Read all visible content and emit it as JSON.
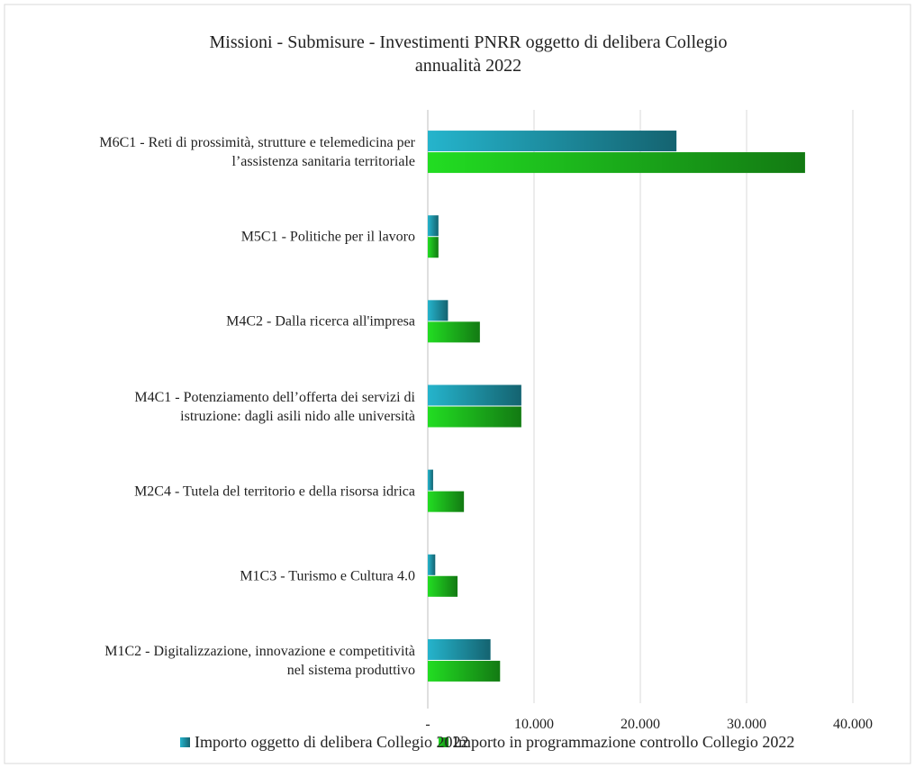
{
  "chart_data": {
    "type": "bar",
    "orientation": "horizontal",
    "title": "Missioni - Submisure - Investimenti PNRR oggetto di delibera Collegio\nannualità 2022",
    "categories": [
      "M6C1 - Reti di prossimità, strutture e telemedicina per\nl’assistenza sanitaria territoriale",
      "M5C1 - Politiche per il lavoro",
      "M4C2 - Dalla ricerca all'impresa",
      "M4C1 - Potenziamento dell’offerta dei servizi di\nistruzione: dagli asili nido alle università",
      "M2C4  - Tutela del territorio e della risorsa idrica",
      "M1C3 - Turismo e Cultura 4.0",
      "M1C2 - Digitalizzazione, innovazione e competitività\nnel sistema produttivo"
    ],
    "series": [
      {
        "name": "Importo oggetto di delibera Collegio 2022",
        "color": "#25b4cc",
        "values": [
          23400,
          1000,
          1900,
          8800,
          500,
          700,
          5900
        ]
      },
      {
        "name": "Importo in programmazione controllo Collegio 2022",
        "color": "#22dd22",
        "values": [
          35500,
          1000,
          4900,
          8800,
          3400,
          2800,
          6800
        ]
      }
    ],
    "xlim": [
      0,
      40000
    ],
    "xticks": [
      {
        "value": 0,
        "label": "-"
      },
      {
        "value": 10000,
        "label": "10.000"
      },
      {
        "value": 20000,
        "label": "20.000"
      },
      {
        "value": 30000,
        "label": "30.000"
      },
      {
        "value": 40000,
        "label": "40.000"
      }
    ],
    "grid": true,
    "legend": "bottom"
  }
}
